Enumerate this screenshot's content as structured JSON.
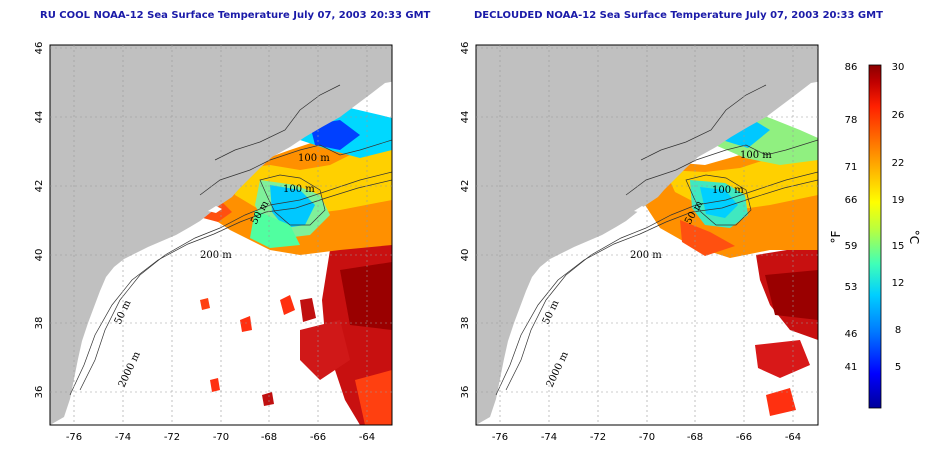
{
  "panels": [
    {
      "title": "RU COOL NOAA-12 Sea Surface Temperature July 07, 2003 20:33 GMT",
      "variant": "cloudy"
    },
    {
      "title": "DECLOUDED NOAA-12 Sea Surface Temperature July 07, 2003 20:33 GMT",
      "variant": "declouded"
    }
  ],
  "axes": {
    "lon_ticks": [
      "-76",
      "-74",
      "-72",
      "-70",
      "-68",
      "-66",
      "-64"
    ],
    "lat_ticks": [
      "46",
      "44",
      "42",
      "40",
      "38",
      "36"
    ],
    "lon_range": [
      -77,
      -63
    ],
    "lat_range": [
      35,
      46
    ]
  },
  "contour_labels": {
    "m100a": "100 m",
    "m100b": "100 m",
    "m50a": "50 m",
    "m200": "200 m",
    "m50b": "50 m",
    "m2000": "2000 m"
  },
  "colorbar": {
    "unit_f": "°F",
    "unit_c": "°C",
    "top_f": "86",
    "top_c": "30",
    "f_ticks": [
      "78",
      "71",
      "66",
      "59",
      "53",
      "46",
      "41"
    ],
    "c_ticks": [
      "26",
      "22",
      "19",
      "15",
      "12",
      "8",
      "5"
    ],
    "c_range": [
      2,
      30
    ],
    "colors": [
      "#00009a",
      "#0000ff",
      "#0077ff",
      "#00cfff",
      "#3fffb8",
      "#b8ff40",
      "#ffff00",
      "#ffc000",
      "#ff7000",
      "#ff2000",
      "#c00000",
      "#8a0000"
    ]
  }
}
